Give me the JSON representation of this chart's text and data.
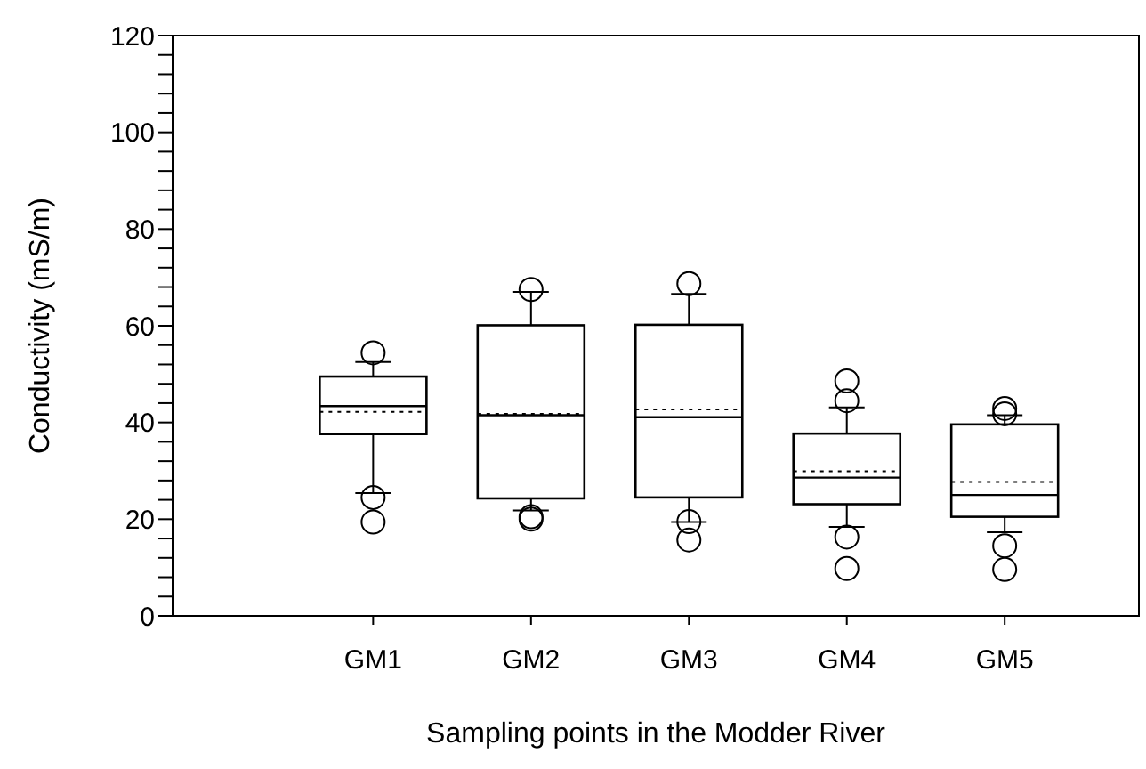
{
  "chart_data": {
    "type": "box",
    "xlabel": "Sampling points in the Modder River",
    "ylabel": "Conductivity (mS/m)",
    "categories": [
      "GM1",
      "GM2",
      "GM3",
      "GM4",
      "GM5"
    ],
    "boxes": [
      {
        "low": 25.4,
        "q1": 37.6,
        "median": 43.4,
        "q3": 49.5,
        "high": 52.5,
        "mean": 42.2,
        "outliers": [
          54.4,
          24.5,
          19.4
        ]
      },
      {
        "low": 21.8,
        "q1": 24.3,
        "median": 41.5,
        "q3": 60.1,
        "high": 67,
        "mean": 41.8,
        "outliers": [
          67.5,
          20.5,
          20
        ]
      },
      {
        "low": 19.4,
        "q1": 24.5,
        "median": 41.1,
        "q3": 60.2,
        "high": 66.6,
        "mean": 42.7,
        "outliers": [
          68.7,
          19.5,
          15.7
        ]
      },
      {
        "low": 18.4,
        "q1": 23.1,
        "median": 28.6,
        "q3": 37.7,
        "high": 43.1,
        "mean": 29.9,
        "outliers": [
          48.6,
          44.5,
          16.3,
          9.8
        ]
      },
      {
        "low": 17.3,
        "q1": 20.5,
        "median": 25,
        "q3": 39.6,
        "high": 41.5,
        "mean": 27.7,
        "outliers": [
          42.9,
          41.8,
          14.5,
          9.6
        ]
      }
    ],
    "color": "#000000",
    "ylim": [
      0,
      120
    ],
    "yticks": [
      0,
      {
        "value": 4,
        "label": null
      },
      {
        "value": 8,
        "label": null
      },
      {
        "value": 12,
        "label": null
      },
      {
        "value": 16,
        "label": null
      },
      20,
      {
        "value": 24,
        "label": null
      },
      {
        "value": 28,
        "label": null
      },
      {
        "value": 32,
        "label": null
      },
      {
        "value": 36,
        "label": null
      },
      40,
      {
        "value": 44,
        "label": null
      },
      {
        "value": 48,
        "label": null
      },
      {
        "value": 52,
        "label": null
      },
      {
        "value": 56,
        "label": null
      },
      60,
      {
        "value": 64,
        "label": null
      },
      {
        "value": 68,
        "label": null
      },
      {
        "value": 72,
        "label": null
      },
      {
        "value": 76,
        "label": null
      },
      80,
      {
        "value": 84,
        "label": null
      },
      {
        "value": 88,
        "label": null
      },
      {
        "value": 92,
        "label": null
      },
      {
        "value": 96,
        "label": null
      },
      100,
      {
        "value": 104,
        "label": null
      },
      {
        "value": 108,
        "label": null
      },
      {
        "value": 112,
        "label": null
      },
      {
        "value": 116,
        "label": null
      },
      120
    ],
    "grid": false
  }
}
